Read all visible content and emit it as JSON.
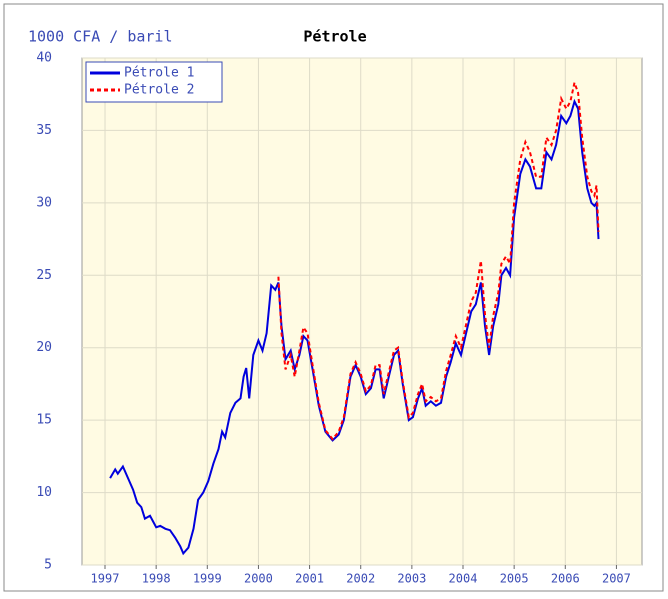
{
  "chart_data": {
    "type": "line",
    "title": "Pétrole",
    "y_label": "1000 CFA / baril",
    "x": [
      1997.1,
      1997.2,
      1997.25,
      1997.35,
      1997.45,
      1997.55,
      1997.63,
      1997.71,
      1997.78,
      1997.88,
      1997.94,
      1998.0,
      1998.08,
      1998.18,
      1998.27,
      1998.37,
      1998.47,
      1998.53,
      1998.63,
      1998.73,
      1998.82,
      1998.92,
      1999.02,
      1999.12,
      1999.22,
      1999.29,
      1999.35,
      1999.45,
      1999.55,
      1999.65,
      1999.71,
      1999.76,
      1999.82,
      1999.9,
      2000.0,
      2000.08,
      2000.16,
      2000.25,
      2000.33,
      2000.39,
      2000.45,
      2000.53,
      2000.63,
      2000.71,
      2000.8,
      2000.88,
      2000.96,
      2001.06,
      2001.18,
      2001.31,
      2001.45,
      2001.57,
      2001.67,
      2001.8,
      2001.9,
      2002.0,
      2002.1,
      2002.2,
      2002.29,
      2002.37,
      2002.45,
      2002.55,
      2002.65,
      2002.73,
      2002.82,
      2002.94,
      2003.02,
      2003.12,
      2003.2,
      2003.27,
      2003.37,
      2003.47,
      2003.57,
      2003.67,
      2003.76,
      2003.86,
      2003.96,
      2004.06,
      2004.16,
      2004.25,
      2004.35,
      2004.43,
      2004.51,
      2004.59,
      2004.69,
      2004.75,
      2004.84,
      2004.92,
      2005.0,
      2005.12,
      2005.22,
      2005.31,
      2005.43,
      2005.53,
      2005.63,
      2005.73,
      2005.82,
      2005.92,
      2006.02,
      2006.1,
      2006.18,
      2006.25,
      2006.33,
      2006.43,
      2006.51,
      2006.57,
      2006.61,
      2006.65
    ],
    "series": [
      {
        "name": "Pétrole 1",
        "color": "#0000dd",
        "dash": false,
        "values": [
          11.0,
          11.6,
          11.3,
          11.8,
          11.0,
          10.2,
          9.3,
          9.0,
          8.2,
          8.4,
          8.0,
          7.6,
          7.7,
          7.5,
          7.4,
          6.9,
          6.3,
          5.8,
          6.2,
          7.5,
          9.5,
          10.0,
          10.8,
          12.0,
          13.0,
          14.2,
          13.8,
          15.5,
          16.2,
          16.5,
          18.0,
          18.6,
          16.5,
          19.5,
          20.5,
          19.8,
          21.0,
          24.3,
          24.0,
          24.5,
          21.5,
          19.2,
          19.8,
          18.5,
          19.5,
          20.8,
          20.5,
          18.5,
          16.0,
          14.2,
          13.6,
          14.0,
          15.0,
          18.0,
          18.8,
          18.0,
          16.8,
          17.2,
          18.5,
          18.5,
          16.5,
          18.0,
          19.5,
          19.8,
          17.5,
          15.0,
          15.2,
          16.5,
          17.2,
          16.0,
          16.3,
          16.0,
          16.2,
          18.0,
          19.0,
          20.3,
          19.5,
          21.0,
          22.5,
          23.0,
          24.5,
          21.5,
          19.5,
          21.5,
          23.0,
          25.0,
          25.5,
          25.0,
          29.0,
          32.0,
          33.0,
          32.5,
          31.0,
          31.0,
          33.5,
          33.0,
          34.0,
          36.0,
          35.5,
          36.0,
          37.0,
          36.5,
          33.5,
          31.0,
          30.0,
          29.8,
          30.0,
          27.5
        ]
      },
      {
        "name": "Pétrole 2",
        "color": "#ff0000",
        "dash": true,
        "values": [
          null,
          null,
          null,
          null,
          null,
          null,
          null,
          null,
          null,
          null,
          null,
          null,
          null,
          null,
          null,
          null,
          null,
          null,
          null,
          null,
          null,
          null,
          null,
          null,
          null,
          null,
          null,
          null,
          null,
          null,
          null,
          null,
          null,
          null,
          null,
          null,
          null,
          null,
          null,
          24.9,
          21.0,
          18.5,
          19.5,
          18.0,
          19.8,
          21.4,
          21.0,
          18.8,
          16.2,
          14.3,
          13.7,
          14.2,
          15.2,
          18.2,
          19.0,
          18.2,
          17.0,
          17.4,
          18.8,
          18.8,
          16.8,
          18.3,
          19.8,
          20.0,
          17.7,
          15.2,
          15.5,
          16.8,
          17.5,
          16.3,
          16.6,
          16.3,
          16.5,
          18.4,
          19.5,
          20.8,
          20.0,
          21.6,
          23.2,
          23.8,
          26.0,
          22.3,
          20.0,
          22.2,
          23.8,
          25.8,
          26.3,
          25.8,
          30.0,
          33.0,
          34.2,
          33.5,
          31.8,
          31.8,
          34.5,
          34.0,
          35.0,
          37.2,
          36.5,
          37.0,
          38.3,
          37.6,
          34.5,
          31.8,
          30.8,
          30.5,
          31.2,
          28.0
        ]
      }
    ],
    "xlim": [
      1996.55,
      2007.5
    ],
    "xticks": [
      1997,
      1998,
      1999,
      2000,
      2001,
      2002,
      2003,
      2004,
      2005,
      2006,
      2007
    ],
    "ylim": [
      5,
      40
    ],
    "yticks": [
      5,
      10,
      15,
      20,
      25,
      30,
      35,
      40
    ],
    "grid": true,
    "legend": "top-left"
  }
}
